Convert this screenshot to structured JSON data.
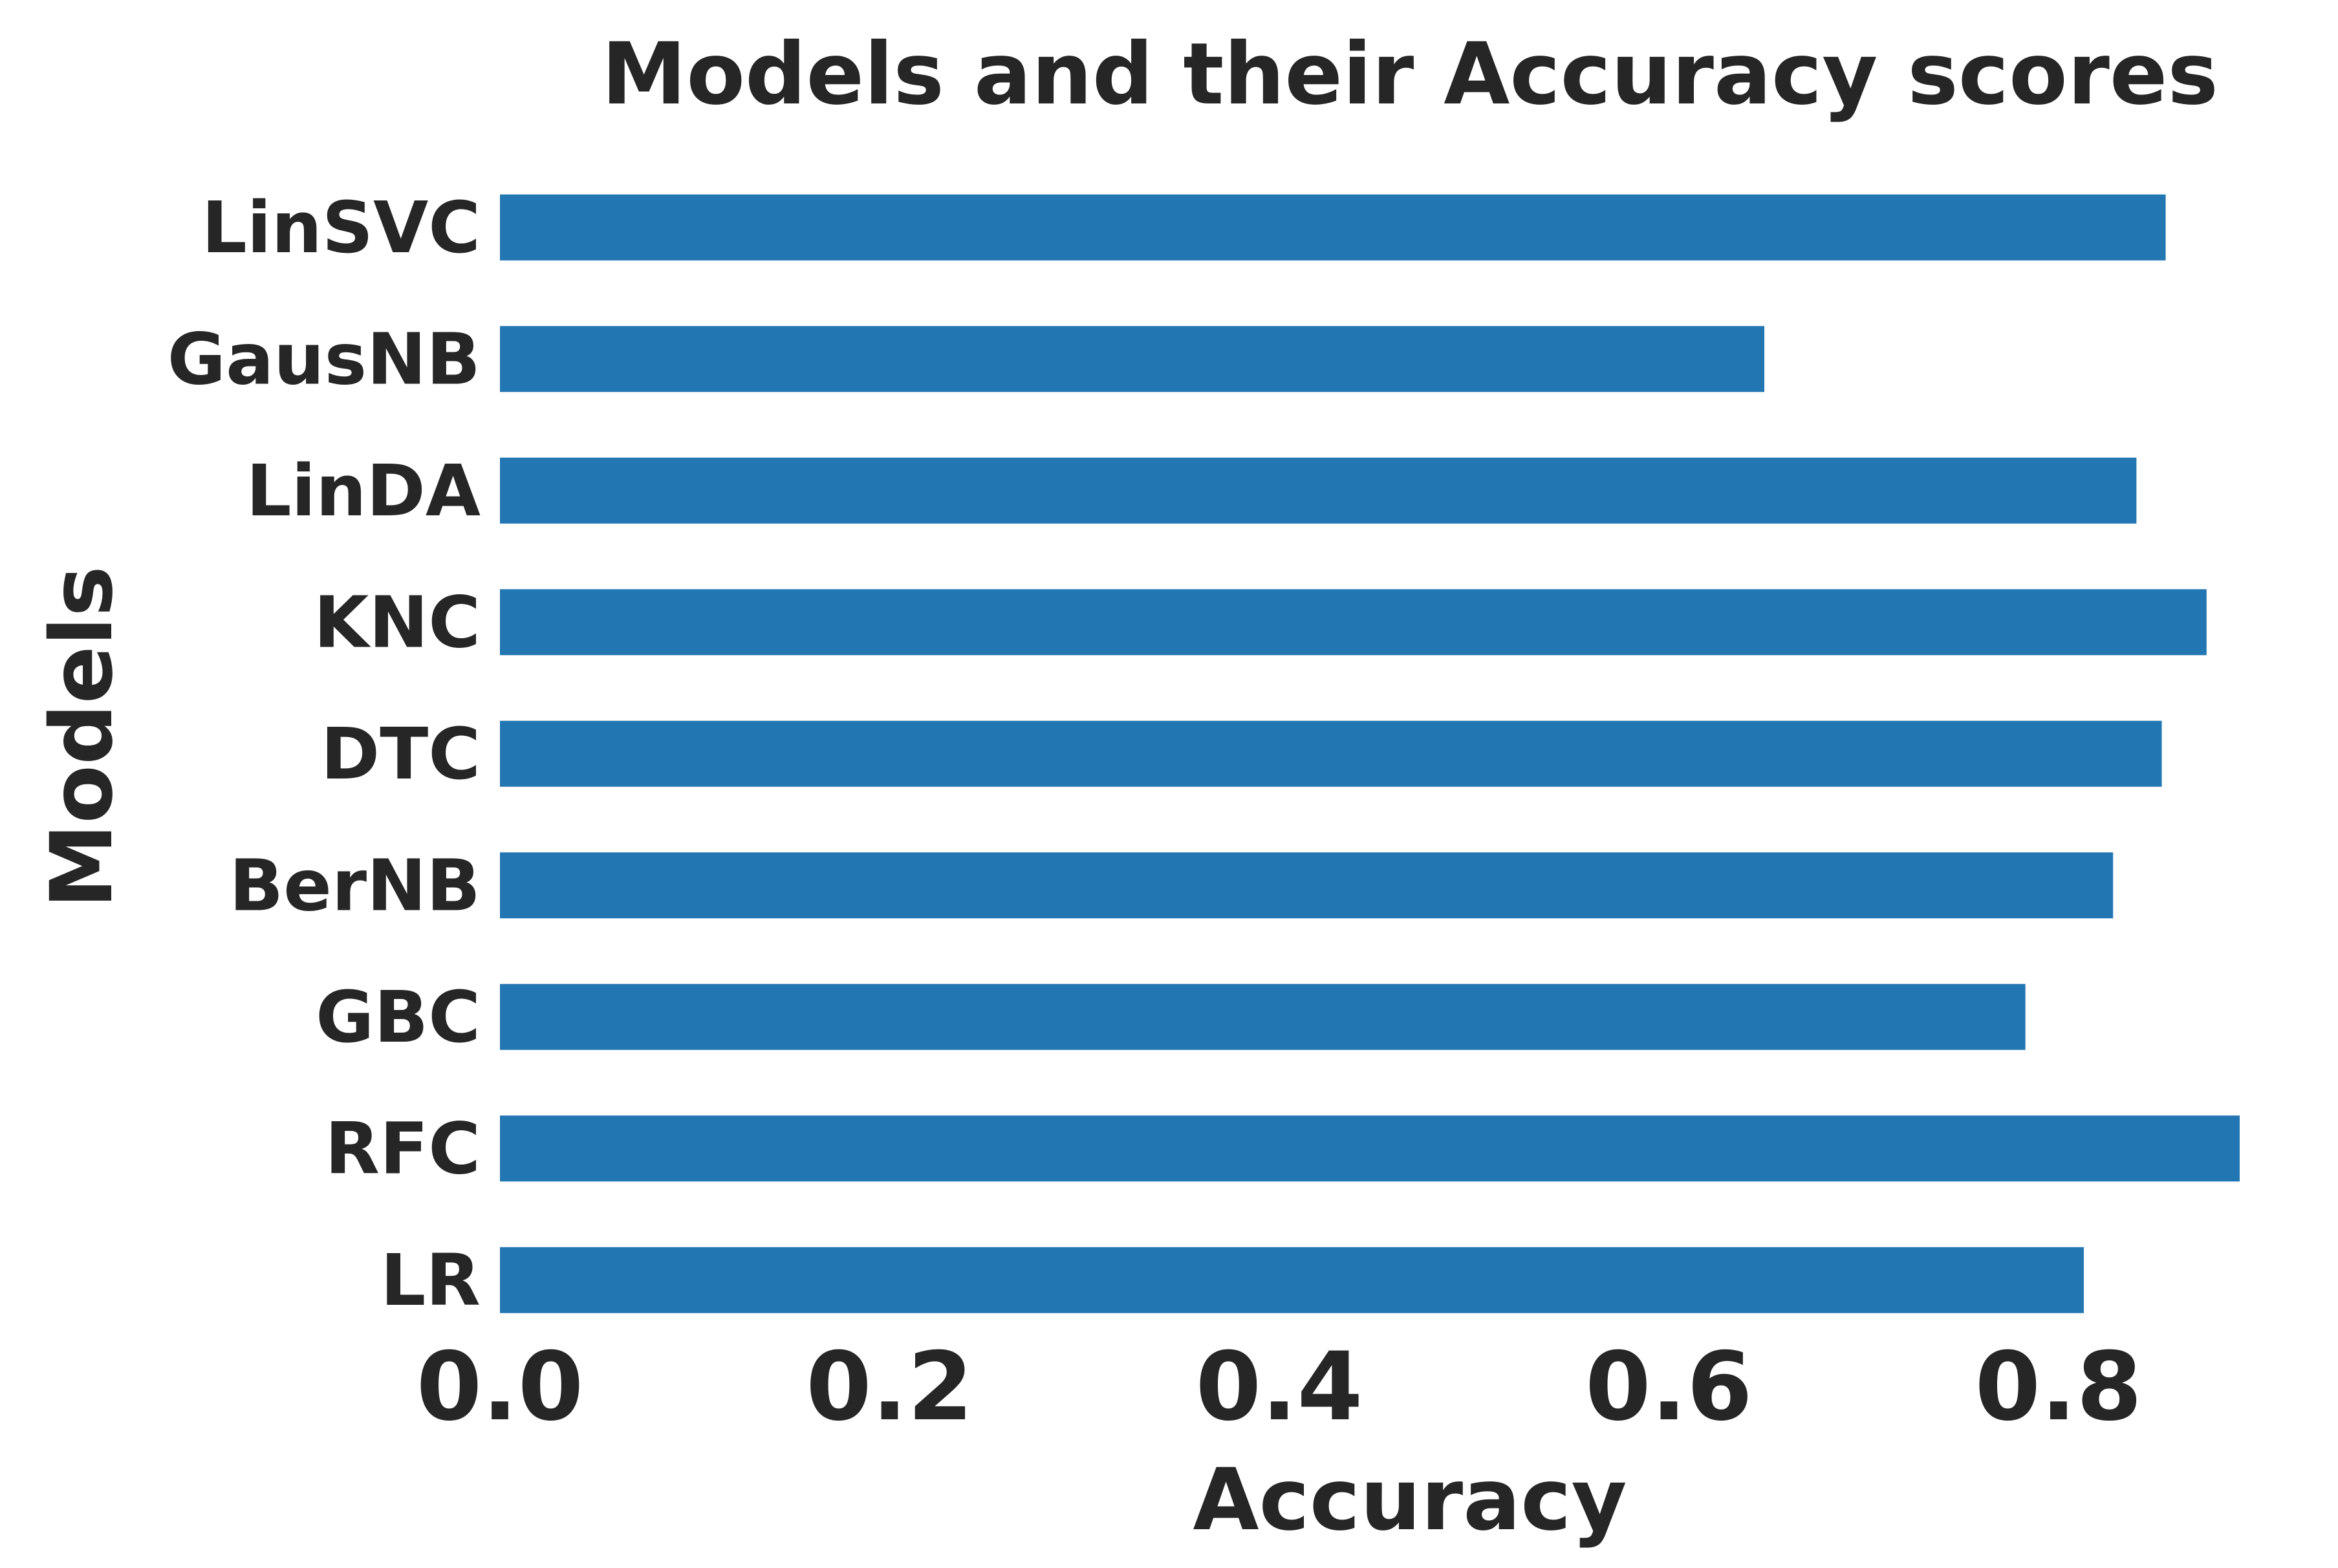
{
  "chart_data": {
    "type": "bar",
    "orientation": "horizontal",
    "title": "Models and their Accuracy scores",
    "xlabel": "Accuracy",
    "ylabel": "Models",
    "categories": [
      "LinSVC",
      "GausNB",
      "LinDA",
      "KNC",
      "DTC",
      "BerNB",
      "GBC",
      "RFC",
      "LR"
    ],
    "values": [
      0.855,
      0.649,
      0.84,
      0.876,
      0.853,
      0.828,
      0.783,
      0.893,
      0.813
    ],
    "xticks": [
      "0.0",
      "0.2",
      "0.4",
      "0.6",
      "0.8"
    ],
    "xlim": [
      0,
      0.893
    ],
    "grid": false,
    "bar_color": "#2276b2"
  }
}
